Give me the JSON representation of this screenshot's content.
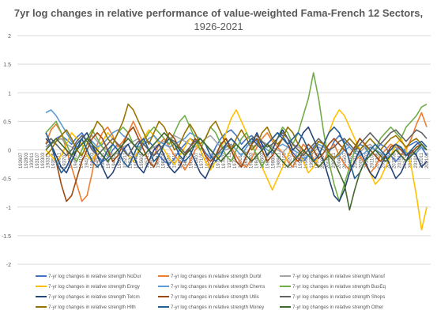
{
  "chart_data": {
    "type": "line",
    "title": "7yr log changes in relative performance of value-weighted Fama-French 12 Sectors,",
    "subtitle": "1926-2021",
    "ylim": [
      -2,
      2
    ],
    "yticks": [
      "2",
      "1.5",
      "1",
      "0.5",
      "0",
      "-0.5",
      "-1",
      "-1.5",
      "-2"
    ],
    "xticks": [
      "192607",
      "192803",
      "193011",
      "193107",
      "193303",
      "193311",
      "193505",
      "193611",
      "193707",
      "193901",
      "194007",
      "194103",
      "194211",
      "194303",
      "194505",
      "194611",
      "194703",
      "194907",
      "195003",
      "195211",
      "195307",
      "195409",
      "195605",
      "195711",
      "195903",
      "196011",
      "196205",
      "196307",
      "196411",
      "196505",
      "196703",
      "196809",
      "196907",
      "197105",
      "197207",
      "197311",
      "197505",
      "197603",
      "197711",
      "197905",
      "198011",
      "198109",
      "198303",
      "198409",
      "198503",
      "198705",
      "198807",
      "198911",
      "199105",
      "199207",
      "199311",
      "199507",
      "199603",
      "199711",
      "199903",
      "200007",
      "200109",
      "200211",
      "200401",
      "200507",
      "200603",
      "200711",
      "200903",
      "201007",
      "201103",
      "201205",
      "201311",
      "201403",
      "201505",
      "201611",
      "201709",
      "201811",
      "201911",
      "202011",
      "202103"
    ],
    "grid": "horizontal",
    "legend_position": "bottom",
    "series": [
      {
        "name": "7-yr log changes in relative strength NoDur",
        "color": "#4472C4",
        "values": [
          0.05,
          0.12,
          0.2,
          0.25,
          0.18,
          0.1,
          0.22,
          0.3,
          0.15,
          0.05,
          -0.1,
          -0.2,
          -0.15,
          0.0,
          0.1,
          0.05,
          -0.1,
          -0.2,
          -0.05,
          0.1,
          0.15,
          0.05,
          -0.1,
          -0.2,
          -0.25,
          -0.15,
          0.0,
          0.1,
          0.2,
          0.15,
          0.1,
          -0.05,
          -0.15,
          0.05,
          0.2,
          0.3,
          0.35,
          0.25,
          0.1,
          0.2,
          0.25,
          0.15,
          0.05,
          0.1,
          0.2,
          0.3,
          0.25,
          0.1,
          -0.05,
          -0.15,
          -0.2,
          -0.1,
          0.05,
          0.15,
          0.1,
          -0.05,
          0.15,
          0.25,
          0.15,
          0.05,
          -0.05,
          0.1,
          0.05,
          -0.1,
          0.0,
          0.1,
          0.05,
          -0.1,
          -0.2,
          -0.1,
          0.05,
          0.1,
          0.15,
          0.05,
          -0.1
        ]
      },
      {
        "name": "7-yr log changes in relative strength Durbl",
        "color": "#ED7D31",
        "values": [
          0.1,
          0.35,
          0.45,
          0.3,
          0.0,
          -0.3,
          -0.6,
          -0.9,
          -0.8,
          -0.4,
          0.1,
          0.3,
          0.4,
          0.25,
          0.05,
          0.15,
          0.3,
          0.5,
          0.3,
          0.1,
          0.0,
          -0.1,
          0.1,
          0.2,
          0.05,
          -0.1,
          -0.2,
          -0.35,
          -0.2,
          0.0,
          0.1,
          -0.1,
          -0.3,
          -0.1,
          0.1,
          0.2,
          0.05,
          -0.1,
          -0.25,
          -0.3,
          -0.15,
          0.05,
          0.2,
          0.3,
          0.15,
          0.05,
          -0.05,
          -0.2,
          -0.3,
          -0.1,
          0.1,
          0.0,
          -0.15,
          -0.3,
          -0.2,
          0.0,
          0.1,
          -0.1,
          -0.25,
          -0.35,
          -0.2,
          -0.1,
          -0.25,
          -0.4,
          -0.3,
          -0.1,
          0.0,
          0.1,
          0.05,
          -0.1,
          0.0,
          0.2,
          0.45,
          0.65,
          0.4
        ]
      },
      {
        "name": "7-yr log changes in relative strength Manuf",
        "color": "#A5A5A5",
        "values": [
          0.05,
          0.1,
          0.15,
          0.2,
          0.1,
          0.05,
          0.0,
          0.1,
          0.2,
          0.25,
          0.15,
          0.05,
          0.0,
          -0.1,
          -0.05,
          0.05,
          0.1,
          0.15,
          0.2,
          0.1,
          0.0,
          0.05,
          0.1,
          0.15,
          0.2,
          0.25,
          0.2,
          0.15,
          0.1,
          0.05,
          0.1,
          0.2,
          0.25,
          0.15,
          0.05,
          0.0,
          0.05,
          0.1,
          0.0,
          -0.05,
          0.05,
          0.1,
          0.15,
          0.1,
          0.05,
          0.0,
          -0.05,
          0.05,
          0.1,
          0.05,
          0.0,
          -0.1,
          -0.05,
          0.05,
          0.0,
          -0.1,
          -0.15,
          -0.05,
          0.05,
          0.1,
          0.0,
          -0.05,
          0.05,
          0.1,
          0.0,
          -0.05,
          -0.1,
          0.0,
          0.05,
          0.0,
          -0.05,
          -0.1,
          0.0,
          0.05,
          0.0
        ]
      },
      {
        "name": "7-yr log changes in relative strength Enrgy",
        "color": "#FFC000",
        "values": [
          0.0,
          -0.1,
          -0.2,
          -0.1,
          0.1,
          0.3,
          0.2,
          0.1,
          -0.1,
          -0.2,
          0.0,
          0.15,
          0.3,
          0.2,
          0.1,
          0.0,
          -0.1,
          -0.2,
          0.0,
          0.2,
          0.35,
          0.25,
          0.1,
          0.0,
          -0.15,
          -0.25,
          -0.1,
          0.05,
          0.2,
          0.1,
          0.0,
          -0.2,
          -0.35,
          -0.2,
          0.0,
          0.3,
          0.55,
          0.7,
          0.5,
          0.3,
          0.1,
          -0.1,
          -0.3,
          -0.5,
          -0.7,
          -0.5,
          -0.3,
          -0.1,
          0.1,
          0.0,
          -0.2,
          -0.4,
          -0.3,
          -0.1,
          0.1,
          0.3,
          0.55,
          0.7,
          0.6,
          0.4,
          0.2,
          0.0,
          -0.2,
          -0.4,
          -0.6,
          -0.5,
          -0.3,
          -0.1,
          0.1,
          0.2,
          0.0,
          -0.3,
          -0.8,
          -1.4,
          -1.0
        ]
      },
      {
        "name": "7-yr log changes in relative strength Chems",
        "color": "#5B9BD5",
        "values": [
          0.65,
          0.7,
          0.6,
          0.45,
          0.3,
          0.15,
          0.05,
          0.1,
          0.2,
          0.15,
          0.05,
          0.1,
          0.2,
          0.3,
          0.35,
          0.25,
          0.2,
          0.1,
          0.05,
          0.1,
          0.2,
          0.25,
          0.15,
          0.1,
          0.05,
          0.1,
          0.15,
          0.2,
          0.3,
          0.25,
          0.2,
          0.1,
          0.0,
          -0.1,
          -0.05,
          0.05,
          0.1,
          0.0,
          -0.1,
          0.05,
          0.15,
          0.2,
          0.1,
          0.0,
          -0.05,
          0.05,
          0.1,
          0.05,
          0.0,
          -0.05,
          -0.15,
          -0.1,
          0.0,
          0.1,
          0.05,
          -0.05,
          -0.15,
          -0.1,
          0.0,
          0.05,
          -0.05,
          -0.1,
          -0.05,
          0.05,
          0.0,
          -0.05,
          -0.15,
          -0.1,
          0.0,
          0.05,
          -0.05,
          -0.1,
          -0.05,
          0.05,
          0.0
        ]
      },
      {
        "name": "7-yr log changes in relative strength BusEq",
        "color": "#70AD47",
        "values": [
          0.3,
          0.4,
          0.5,
          0.3,
          0.1,
          -0.1,
          -0.2,
          0.0,
          0.2,
          0.35,
          0.2,
          0.05,
          -0.1,
          0.1,
          0.3,
          0.4,
          0.3,
          0.1,
          0.0,
          0.15,
          0.3,
          0.4,
          0.3,
          0.2,
          0.1,
          0.3,
          0.5,
          0.6,
          0.4,
          0.2,
          0.0,
          0.2,
          0.4,
          0.3,
          0.1,
          -0.1,
          -0.2,
          0.0,
          0.2,
          0.3,
          0.1,
          -0.1,
          -0.3,
          -0.1,
          0.1,
          0.2,
          0.4,
          0.3,
          0.1,
          0.3,
          0.6,
          0.9,
          1.35,
          0.9,
          0.3,
          -0.2,
          -0.6,
          -0.9,
          -0.6,
          -0.3,
          0.0,
          0.2,
          0.1,
          -0.1,
          0.0,
          0.2,
          0.3,
          0.4,
          0.3,
          0.2,
          0.4,
          0.5,
          0.6,
          0.75,
          0.8
        ]
      },
      {
        "name": "7-yr log changes in relative strength Telcm",
        "color": "#264478",
        "values": [
          0.2,
          0.1,
          -0.1,
          -0.3,
          -0.4,
          -0.2,
          0.0,
          0.2,
          0.3,
          0.1,
          -0.1,
          -0.3,
          -0.5,
          -0.4,
          -0.2,
          0.0,
          0.1,
          -0.1,
          -0.3,
          -0.4,
          -0.2,
          0.0,
          0.1,
          -0.1,
          -0.3,
          -0.4,
          -0.3,
          -0.1,
          0.0,
          -0.2,
          -0.4,
          -0.5,
          -0.3,
          -0.1,
          0.1,
          0.2,
          0.0,
          -0.2,
          -0.3,
          -0.1,
          0.1,
          0.3,
          0.1,
          -0.1,
          0.0,
          0.2,
          0.35,
          0.2,
          0.0,
          0.1,
          0.3,
          0.4,
          0.2,
          0.0,
          -0.2,
          -0.5,
          -0.8,
          -0.9,
          -0.7,
          -0.4,
          -0.2,
          0.0,
          -0.2,
          -0.4,
          -0.5,
          -0.3,
          -0.1,
          -0.3,
          -0.5,
          -0.4,
          -0.2,
          0.0,
          -0.1,
          -0.3,
          -0.2
        ]
      },
      {
        "name": "7-yr log changes in relative strength Utils",
        "color": "#9E480E",
        "values": [
          0.3,
          0.1,
          -0.2,
          -0.6,
          -0.9,
          -0.8,
          -0.5,
          -0.2,
          0.0,
          0.2,
          0.3,
          0.2,
          0.0,
          -0.2,
          -0.1,
          0.1,
          0.3,
          0.4,
          0.2,
          0.0,
          -0.2,
          -0.3,
          -0.1,
          0.1,
          0.3,
          0.2,
          0.0,
          -0.1,
          0.05,
          0.2,
          0.1,
          -0.1,
          -0.2,
          -0.1,
          0.1,
          0.2,
          0.0,
          -0.2,
          -0.3,
          -0.1,
          0.1,
          0.2,
          0.0,
          -0.2,
          -0.1,
          0.05,
          0.2,
          0.1,
          -0.1,
          -0.2,
          -0.05,
          0.1,
          0.0,
          -0.15,
          -0.05,
          0.1,
          0.2,
          0.1,
          0.0,
          -0.1,
          0.05,
          0.2,
          0.1,
          0.0,
          -0.1,
          -0.2,
          -0.1,
          0.05,
          0.1,
          0.0,
          -0.1,
          -0.05,
          0.05,
          0.1,
          0.0
        ]
      },
      {
        "name": "7-yr log changes in relative strength Shops",
        "color": "#636363",
        "values": [
          0.1,
          0.2,
          0.1,
          0.0,
          -0.1,
          0.0,
          0.15,
          0.25,
          0.15,
          0.0,
          -0.1,
          0.0,
          0.1,
          0.2,
          0.1,
          0.0,
          -0.1,
          0.05,
          0.15,
          0.1,
          0.0,
          -0.1,
          0.0,
          0.1,
          0.2,
          0.15,
          0.05,
          -0.05,
          0.05,
          0.15,
          0.2,
          0.1,
          0.0,
          -0.1,
          0.0,
          0.1,
          0.2,
          0.1,
          0.0,
          0.1,
          0.2,
          0.25,
          0.15,
          0.05,
          0.1,
          0.2,
          0.3,
          0.2,
          0.1,
          0.0,
          -0.1,
          0.0,
          0.1,
          0.2,
          0.1,
          0.0,
          0.05,
          0.15,
          0.2,
          0.1,
          0.0,
          0.1,
          0.2,
          0.3,
          0.2,
          0.1,
          0.2,
          0.3,
          0.35,
          0.25,
          0.15,
          0.25,
          0.35,
          0.3,
          0.2
        ]
      },
      {
        "name": "7-yr log changes in relative strength Hlth",
        "color": "#997300",
        "values": [
          -0.1,
          0.0,
          0.15,
          0.25,
          0.35,
          0.2,
          0.0,
          -0.1,
          0.1,
          0.3,
          0.5,
          0.4,
          0.2,
          0.1,
          0.3,
          0.5,
          0.8,
          0.7,
          0.5,
          0.3,
          0.1,
          0.3,
          0.5,
          0.4,
          0.2,
          0.0,
          0.1,
          0.3,
          0.45,
          0.3,
          0.1,
          0.2,
          0.4,
          0.5,
          0.3,
          0.1,
          0.0,
          0.2,
          0.35,
          0.2,
          0.0,
          0.1,
          0.3,
          0.4,
          0.2,
          0.1,
          0.2,
          0.4,
          0.3,
          0.1,
          0.0,
          -0.1,
          0.0,
          0.15,
          0.1,
          -0.05,
          -0.15,
          -0.05,
          0.1,
          0.2,
          0.1,
          0.0,
          0.1,
          0.2,
          0.1,
          0.0,
          0.1,
          0.2,
          0.25,
          0.15,
          0.05,
          0.15,
          0.2,
          0.1,
          0.0
        ]
      },
      {
        "name": "7-yr log changes in relative strength Money",
        "color": "#255E91",
        "values": [
          0.3,
          0.1,
          -0.2,
          -0.4,
          -0.3,
          -0.1,
          0.1,
          0.2,
          0.0,
          -0.2,
          -0.3,
          -0.2,
          0.0,
          0.1,
          0.0,
          -0.2,
          -0.3,
          -0.1,
          0.1,
          0.2,
          0.0,
          -0.2,
          -0.1,
          0.1,
          0.2,
          0.1,
          -0.1,
          -0.2,
          -0.1,
          0.1,
          0.2,
          0.1,
          -0.1,
          -0.2,
          -0.1,
          0.1,
          0.2,
          0.1,
          0.0,
          0.1,
          0.2,
          0.1,
          0.0,
          0.1,
          0.2,
          0.3,
          0.2,
          0.1,
          0.2,
          0.3,
          0.2,
          0.0,
          -0.2,
          -0.1,
          0.1,
          0.3,
          0.4,
          0.3,
          0.1,
          -0.2,
          -0.5,
          -0.4,
          -0.2,
          0.0,
          0.1,
          0.0,
          -0.1,
          0.0,
          0.1,
          0.05,
          -0.1,
          0.0,
          0.1,
          0.15,
          0.05
        ]
      },
      {
        "name": "7-yr log changes in relative strength Other",
        "color": "#43682B",
        "values": [
          0.0,
          0.1,
          0.2,
          0.1,
          0.0,
          -0.1,
          0.0,
          0.1,
          0.2,
          0.1,
          0.0,
          -0.1,
          -0.2,
          -0.1,
          0.0,
          0.1,
          0.2,
          0.1,
          0.0,
          -0.1,
          0.0,
          0.1,
          0.2,
          0.3,
          0.2,
          0.1,
          0.0,
          -0.1,
          0.0,
          0.1,
          0.2,
          0.1,
          0.0,
          -0.1,
          -0.2,
          -0.1,
          0.0,
          0.1,
          0.0,
          -0.1,
          -0.2,
          -0.1,
          0.0,
          0.1,
          0.0,
          -0.1,
          -0.2,
          -0.3,
          -0.2,
          -0.1,
          0.0,
          -0.1,
          -0.2,
          -0.3,
          -0.2,
          -0.1,
          -0.2,
          -0.4,
          -0.6,
          -1.05,
          -0.7,
          -0.4,
          -0.2,
          -0.1,
          0.0,
          -0.1,
          -0.2,
          -0.1,
          0.0,
          -0.1,
          -0.2,
          -0.1,
          0.0,
          0.1,
          0.0
        ]
      }
    ]
  }
}
